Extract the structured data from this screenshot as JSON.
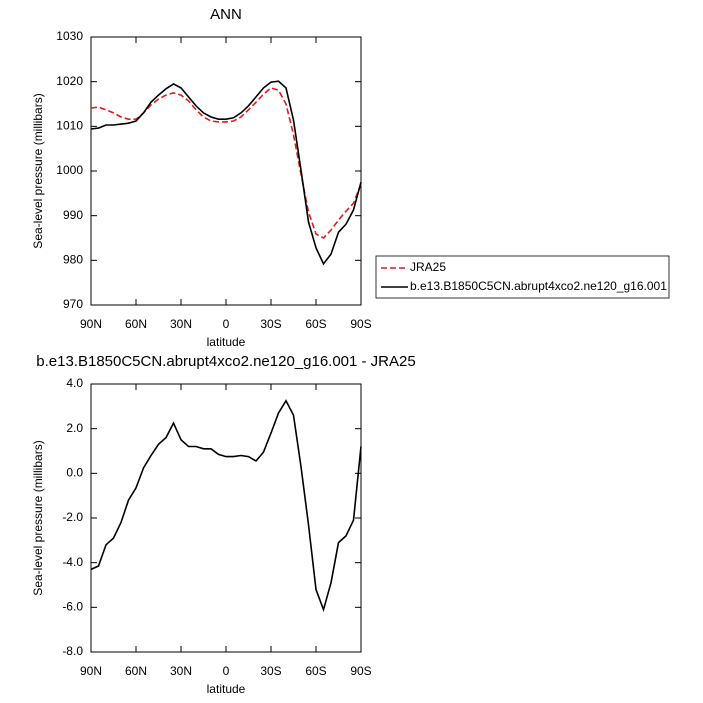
{
  "chart_data": [
    {
      "type": "line",
      "title": "ANN",
      "xlabel": "latitude",
      "ylabel": "Sea-level pressure (millibars)",
      "x": [
        90,
        85,
        80,
        75,
        70,
        65,
        60,
        55,
        50,
        45,
        40,
        35,
        30,
        25,
        20,
        15,
        10,
        5,
        0,
        -5,
        -10,
        -15,
        -20,
        -25,
        -30,
        -35,
        -40,
        -45,
        -50,
        -55,
        -60,
        -65,
        -70,
        -75,
        -80,
        -85,
        -90
      ],
      "series": [
        {
          "name": "JRA25",
          "color": "#e41a1c",
          "dash": true,
          "values": [
            1014.1,
            1014.3,
            1013.7,
            1013.0,
            1012.1,
            1011.6,
            1011.6,
            1013.0,
            1014.8,
            1016.1,
            1017.0,
            1017.5,
            1017.0,
            1015.7,
            1013.7,
            1012.1,
            1011.2,
            1011.0,
            1011.0,
            1011.2,
            1012.1,
            1013.7,
            1015.4,
            1017.2,
            1018.6,
            1018.1,
            1015.0,
            1008.1,
            999.3,
            990.8,
            985.9,
            985.0,
            986.8,
            989.0,
            991.0,
            992.8,
            997.1
          ]
        },
        {
          "name": "b.e13.B1850C5CN.abrupt4xco2.ne120_g16.001",
          "color": "#000000",
          "dash": false,
          "values": [
            1009.4,
            1009.6,
            1010.3,
            1010.3,
            1010.5,
            1010.7,
            1011.2,
            1013.0,
            1015.4,
            1017.0,
            1018.4,
            1019.5,
            1018.6,
            1016.6,
            1014.6,
            1013.0,
            1012.1,
            1011.6,
            1011.6,
            1011.9,
            1013.0,
            1014.6,
            1016.6,
            1018.6,
            1019.9,
            1020.1,
            1018.6,
            1011.4,
            1000.2,
            988.6,
            982.8,
            979.2,
            981.4,
            986.3,
            988.1,
            991.3,
            997.5
          ]
        }
      ],
      "xlim": [
        90,
        -90
      ],
      "xticks": [
        {
          "value": 90,
          "label": "90N"
        },
        {
          "value": 60,
          "label": "60N"
        },
        {
          "value": 30,
          "label": "30N"
        },
        0,
        {
          "value": -30,
          "label": "30S"
        },
        {
          "value": -60,
          "label": "60S"
        },
        {
          "value": -90,
          "label": "90S"
        }
      ],
      "ylim": [
        970,
        1030
      ],
      "yticks": [
        970,
        980,
        990,
        1000,
        1010,
        1020,
        1030
      ],
      "legend": "outside right"
    },
    {
      "type": "line",
      "title": "b.e13.B1850C5CN.abrupt4xco2.ne120_g16.001 - JRA25",
      "xlabel": "latitude",
      "ylabel": "Sea-level pressure (millibars)",
      "x": [
        90,
        85,
        80,
        75,
        70,
        65,
        60,
        55,
        50,
        45,
        40,
        35,
        30,
        25,
        20,
        15,
        10,
        5,
        0,
        -5,
        -10,
        -15,
        -20,
        -25,
        -30,
        -35,
        -40,
        -45,
        -50,
        -55,
        -60,
        -65,
        -70,
        -75,
        -80,
        -85,
        -90
      ],
      "values": [
        -4.3,
        -4.15,
        -3.2,
        -2.9,
        -2.2,
        -1.2,
        -0.65,
        0.24,
        0.8,
        1.3,
        1.6,
        2.25,
        1.5,
        1.2,
        1.2,
        1.1,
        1.1,
        0.85,
        0.75,
        0.75,
        0.8,
        0.75,
        0.55,
        0.95,
        1.8,
        2.7,
        3.25,
        2.6,
        0.3,
        -2.3,
        -5.2,
        -6.1,
        -4.9,
        -3.1,
        -2.8,
        -2.1,
        1.2
      ],
      "color": "#000000",
      "xlim": [
        90,
        -90
      ],
      "xticks": [
        {
          "value": 90,
          "label": "90N"
        },
        {
          "value": 60,
          "label": "60N"
        },
        {
          "value": 30,
          "label": "30N"
        },
        0,
        {
          "value": -30,
          "label": "30S"
        },
        {
          "value": -60,
          "label": "60S"
        },
        {
          "value": -90,
          "label": "90S"
        }
      ],
      "ylim": [
        -8,
        4
      ],
      "yticks": [
        {
          "value": -8,
          "label": "-8.0"
        },
        {
          "value": -6,
          "label": "-6.0"
        },
        {
          "value": -4,
          "label": "-4.0"
        },
        {
          "value": -2,
          "label": "-2.0"
        },
        {
          "value": 0,
          "label": "0.0"
        },
        {
          "value": 2,
          "label": "2.0"
        },
        {
          "value": 4,
          "label": "4.0"
        }
      ]
    }
  ]
}
